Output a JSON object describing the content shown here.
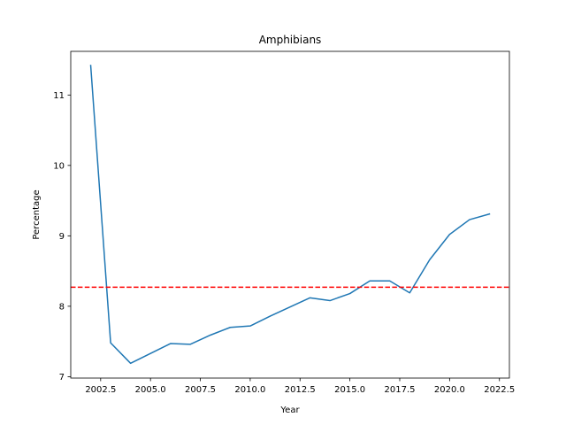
{
  "chart_data": {
    "type": "line",
    "title": "Amphibians",
    "xlabel": "Year",
    "ylabel": "Percentage",
    "xlim": [
      2001.0,
      2023.0
    ],
    "ylim": [
      6.98,
      11.62
    ],
    "xticks": [
      2002.5,
      2005.0,
      2007.5,
      2010.0,
      2012.5,
      2015.0,
      2017.5,
      2020.0,
      2022.5
    ],
    "xtick_labels": [
      "2002.5",
      "2005.0",
      "2007.5",
      "2010.0",
      "2012.5",
      "2015.0",
      "2017.5",
      "2020.0",
      "2022.5"
    ],
    "yticks": [
      7,
      8,
      9,
      10,
      11
    ],
    "ytick_labels": [
      "7",
      "8",
      "9",
      "10",
      "11"
    ],
    "grid": false,
    "series": [
      {
        "color": "#1f77b4",
        "x": [
          2002,
          2003,
          2004,
          2005,
          2006,
          2007,
          2008,
          2009,
          2010,
          2011,
          2012,
          2013,
          2014,
          2015,
          2016,
          2017,
          2018,
          2019,
          2020,
          2021,
          2022
        ],
        "y": [
          11.42,
          7.48,
          7.19,
          7.33,
          7.47,
          7.46,
          7.59,
          7.7,
          7.72,
          7.86,
          7.99,
          8.12,
          8.08,
          8.18,
          8.36,
          8.36,
          8.19,
          8.66,
          9.02,
          9.23,
          9.31
        ]
      }
    ],
    "reference_line": {
      "orientation": "horizontal",
      "y": 8.27,
      "color": "#ff0000",
      "style": "dashed"
    }
  }
}
